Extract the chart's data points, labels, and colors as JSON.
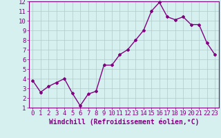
{
  "x": [
    0,
    1,
    2,
    3,
    4,
    5,
    6,
    7,
    8,
    9,
    10,
    11,
    12,
    13,
    14,
    15,
    16,
    17,
    18,
    19,
    20,
    21,
    22,
    23
  ],
  "y": [
    3.8,
    2.6,
    3.2,
    3.6,
    4.0,
    2.5,
    1.2,
    2.4,
    2.7,
    5.4,
    5.4,
    6.5,
    7.0,
    8.0,
    9.0,
    11.0,
    11.9,
    10.4,
    10.1,
    10.4,
    9.6,
    9.6,
    7.7,
    6.5
  ],
  "line_color": "#800080",
  "marker": "D",
  "marker_size": 2,
  "line_width": 1.0,
  "bg_color": "#d6f0f0",
  "grid_color": "#b0c8c8",
  "xlabel": "Windchill (Refroidissement éolien,°C)",
  "xlabel_color": "#800080",
  "tick_color": "#800080",
  "xlim": [
    -0.5,
    23.5
  ],
  "ylim": [
    1,
    12
  ],
  "xticks": [
    0,
    1,
    2,
    3,
    4,
    5,
    6,
    7,
    8,
    9,
    10,
    11,
    12,
    13,
    14,
    15,
    16,
    17,
    18,
    19,
    20,
    21,
    22,
    23
  ],
  "yticks": [
    1,
    2,
    3,
    4,
    5,
    6,
    7,
    8,
    9,
    10,
    11,
    12
  ],
  "font_size": 6.5,
  "xlabel_fontsize": 7.0
}
